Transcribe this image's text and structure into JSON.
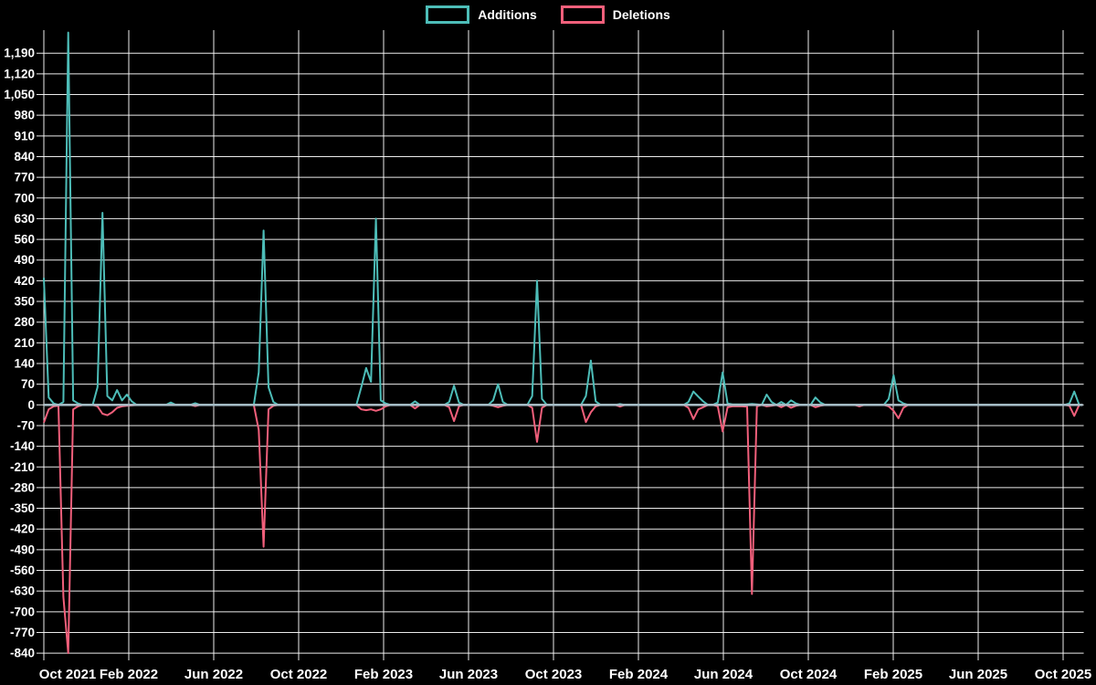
{
  "legend": {
    "items": [
      {
        "label": "Additions",
        "color": "#4DBDB8"
      },
      {
        "label": "Deletions",
        "color": "#F15F7B"
      }
    ]
  },
  "colors": {
    "background": "#000000",
    "grid": "#FFFFFF",
    "zero_line": "#A9BDC7",
    "text": "#FFFFFF",
    "additions": "#4DBDB8",
    "deletions": "#F15F7B"
  },
  "axes": {
    "y_tick_labels": [
      "1,190",
      "1,120",
      "1,050",
      "980",
      "910",
      "840",
      "770",
      "700",
      "630",
      "560",
      "490",
      "420",
      "350",
      "280",
      "210",
      "140",
      "70",
      "0",
      "-70",
      "-140",
      "-210",
      "-280",
      "-350",
      "-420",
      "-490",
      "-560",
      "-630",
      "-700",
      "-770",
      "-840"
    ],
    "x_tick_labels": [
      "Oct 2021",
      "Feb 2022",
      "Jun 2022",
      "Oct 2022",
      "Feb 2023",
      "Jun 2023",
      "Oct 2023",
      "Feb 2024",
      "Jun 2024",
      "Oct 2024",
      "Feb 2025",
      "Jun 2025",
      "Oct 2025"
    ]
  },
  "chart_data": {
    "type": "line",
    "title": "",
    "xlabel": "",
    "ylabel": "",
    "legend_position": "top-center",
    "grid": true,
    "x_start_week": "2021-10-03",
    "week_interval_days": 7,
    "num_weeks": 213,
    "baseline_value": 0,
    "y_tick_step": 70,
    "y_tick_max": 1190,
    "y_tick_min": -840,
    "ylim": [
      -853,
      1267
    ],
    "series": [
      {
        "name": "Additions",
        "color": "#4DBDB8",
        "sign": "positive"
      },
      {
        "name": "Deletions",
        "color": "#F15F7B",
        "sign": "negative"
      }
    ],
    "events": [
      {
        "week": 0,
        "additions": 430,
        "deletions": -60
      },
      {
        "week": 1,
        "additions": 25,
        "deletions": -15
      },
      {
        "week": 2,
        "additions": 5,
        "deletions": -5
      },
      {
        "week": 3,
        "additions": 0,
        "deletions": -3
      },
      {
        "week": 4,
        "additions": 10,
        "deletions": -650
      },
      {
        "week": 5,
        "additions": 1260,
        "deletions": -840
      },
      {
        "week": 6,
        "additions": 15,
        "deletions": -15
      },
      {
        "week": 7,
        "additions": 5,
        "deletions": -5
      },
      {
        "week": 11,
        "additions": 60,
        "deletions": -5
      },
      {
        "week": 12,
        "additions": 650,
        "deletions": -30
      },
      {
        "week": 13,
        "additions": 30,
        "deletions": -35
      },
      {
        "week": 14,
        "additions": 15,
        "deletions": -25
      },
      {
        "week": 15,
        "additions": 50,
        "deletions": -10
      },
      {
        "week": 16,
        "additions": 15,
        "deletions": -5
      },
      {
        "week": 17,
        "additions": 35,
        "deletions": -3
      },
      {
        "week": 18,
        "additions": 12,
        "deletions": -2
      },
      {
        "week": 26,
        "additions": 8,
        "deletions": 0
      },
      {
        "week": 31,
        "additions": 6,
        "deletions": -4
      },
      {
        "week": 44,
        "additions": 110,
        "deletions": -85
      },
      {
        "week": 45,
        "additions": 590,
        "deletions": -480
      },
      {
        "week": 46,
        "additions": 60,
        "deletions": -15
      },
      {
        "week": 47,
        "additions": 10,
        "deletions": -3
      },
      {
        "week": 65,
        "additions": 60,
        "deletions": -15
      },
      {
        "week": 66,
        "additions": 125,
        "deletions": -18
      },
      {
        "week": 67,
        "additions": 78,
        "deletions": -15
      },
      {
        "week": 68,
        "additions": 630,
        "deletions": -20
      },
      {
        "week": 69,
        "additions": 15,
        "deletions": -15
      },
      {
        "week": 70,
        "additions": 5,
        "deletions": -5
      },
      {
        "week": 76,
        "additions": 12,
        "deletions": -12
      },
      {
        "week": 83,
        "additions": 10,
        "deletions": -8
      },
      {
        "week": 84,
        "additions": 65,
        "deletions": -55
      },
      {
        "week": 85,
        "additions": 8,
        "deletions": -5
      },
      {
        "week": 92,
        "additions": 15,
        "deletions": -3
      },
      {
        "week": 93,
        "additions": 70,
        "deletions": -8
      },
      {
        "week": 94,
        "additions": 10,
        "deletions": -3
      },
      {
        "week": 100,
        "additions": 30,
        "deletions": -10
      },
      {
        "week": 101,
        "additions": 420,
        "deletions": -125
      },
      {
        "week": 102,
        "additions": 20,
        "deletions": -10
      },
      {
        "week": 111,
        "additions": 30,
        "deletions": -58
      },
      {
        "week": 112,
        "additions": 150,
        "deletions": -25
      },
      {
        "week": 113,
        "additions": 12,
        "deletions": -5
      },
      {
        "week": 118,
        "additions": 3,
        "deletions": -6
      },
      {
        "week": 132,
        "additions": 10,
        "deletions": -10
      },
      {
        "week": 133,
        "additions": 45,
        "deletions": -48
      },
      {
        "week": 134,
        "additions": 28,
        "deletions": -15
      },
      {
        "week": 135,
        "additions": 12,
        "deletions": -8
      },
      {
        "week": 138,
        "additions": 8,
        "deletions": -5
      },
      {
        "week": 139,
        "additions": 110,
        "deletions": -90
      },
      {
        "week": 140,
        "additions": 5,
        "deletions": -8
      },
      {
        "week": 141,
        "additions": 2,
        "deletions": -5
      },
      {
        "week": 142,
        "additions": 2,
        "deletions": -5
      },
      {
        "week": 143,
        "additions": 2,
        "deletions": -5
      },
      {
        "week": 144,
        "additions": 2,
        "deletions": -6
      },
      {
        "week": 145,
        "additions": 3,
        "deletions": -640
      },
      {
        "week": 146,
        "additions": 2,
        "deletions": -5
      },
      {
        "week": 148,
        "additions": 35,
        "deletions": -5
      },
      {
        "week": 149,
        "additions": 10,
        "deletions": -3
      },
      {
        "week": 151,
        "additions": 10,
        "deletions": -8
      },
      {
        "week": 153,
        "additions": 15,
        "deletions": -10
      },
      {
        "week": 154,
        "additions": 5,
        "deletions": -3
      },
      {
        "week": 158,
        "additions": 25,
        "deletions": -8
      },
      {
        "week": 159,
        "additions": 8,
        "deletions": -3
      },
      {
        "week": 167,
        "additions": 0,
        "deletions": -5
      },
      {
        "week": 173,
        "additions": 20,
        "deletions": -5
      },
      {
        "week": 174,
        "additions": 100,
        "deletions": -20
      },
      {
        "week": 175,
        "additions": 15,
        "deletions": -45
      },
      {
        "week": 176,
        "additions": 5,
        "deletions": -10
      },
      {
        "week": 210,
        "additions": 5,
        "deletions": -3
      },
      {
        "week": 211,
        "additions": 45,
        "deletions": -37
      }
    ]
  }
}
